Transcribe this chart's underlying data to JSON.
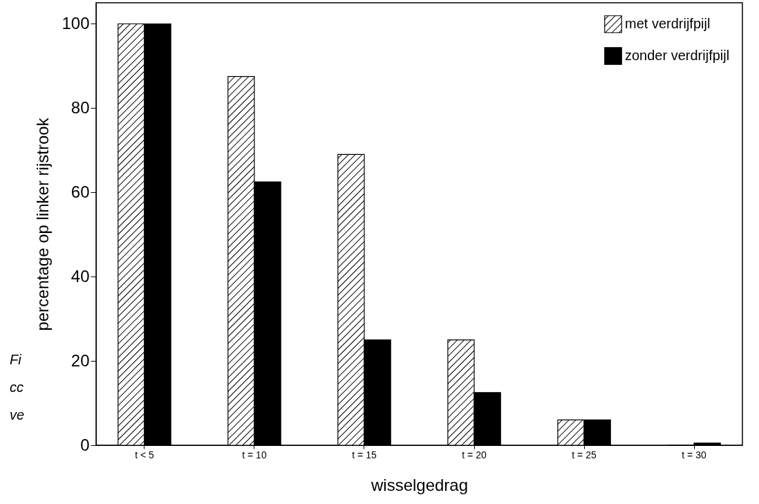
{
  "chart_data": {
    "type": "bar",
    "xlabel": "wisselgedrag",
    "ylabel": "percentage op linker rijstrook",
    "categories": [
      "t < 5",
      "t = 10",
      "t = 15",
      "t = 20",
      "t = 25",
      "t = 30"
    ],
    "series": [
      {
        "name": "met verdrijfpijl",
        "color": "#000000",
        "values": [
          100,
          87.5,
          69,
          25,
          6,
          0
        ]
      },
      {
        "name": "zonder verdrijfpijl",
        "color": "#000000",
        "values": [
          100,
          62.5,
          25,
          12.5,
          6,
          0.5
        ]
      }
    ],
    "ylim": [
      0,
      105
    ],
    "yticks": [
      0,
      20,
      40,
      60,
      80,
      100
    ],
    "grid": false,
    "legend": "top right",
    "annotations": [
      "Fi",
      "cc",
      "ve"
    ]
  }
}
